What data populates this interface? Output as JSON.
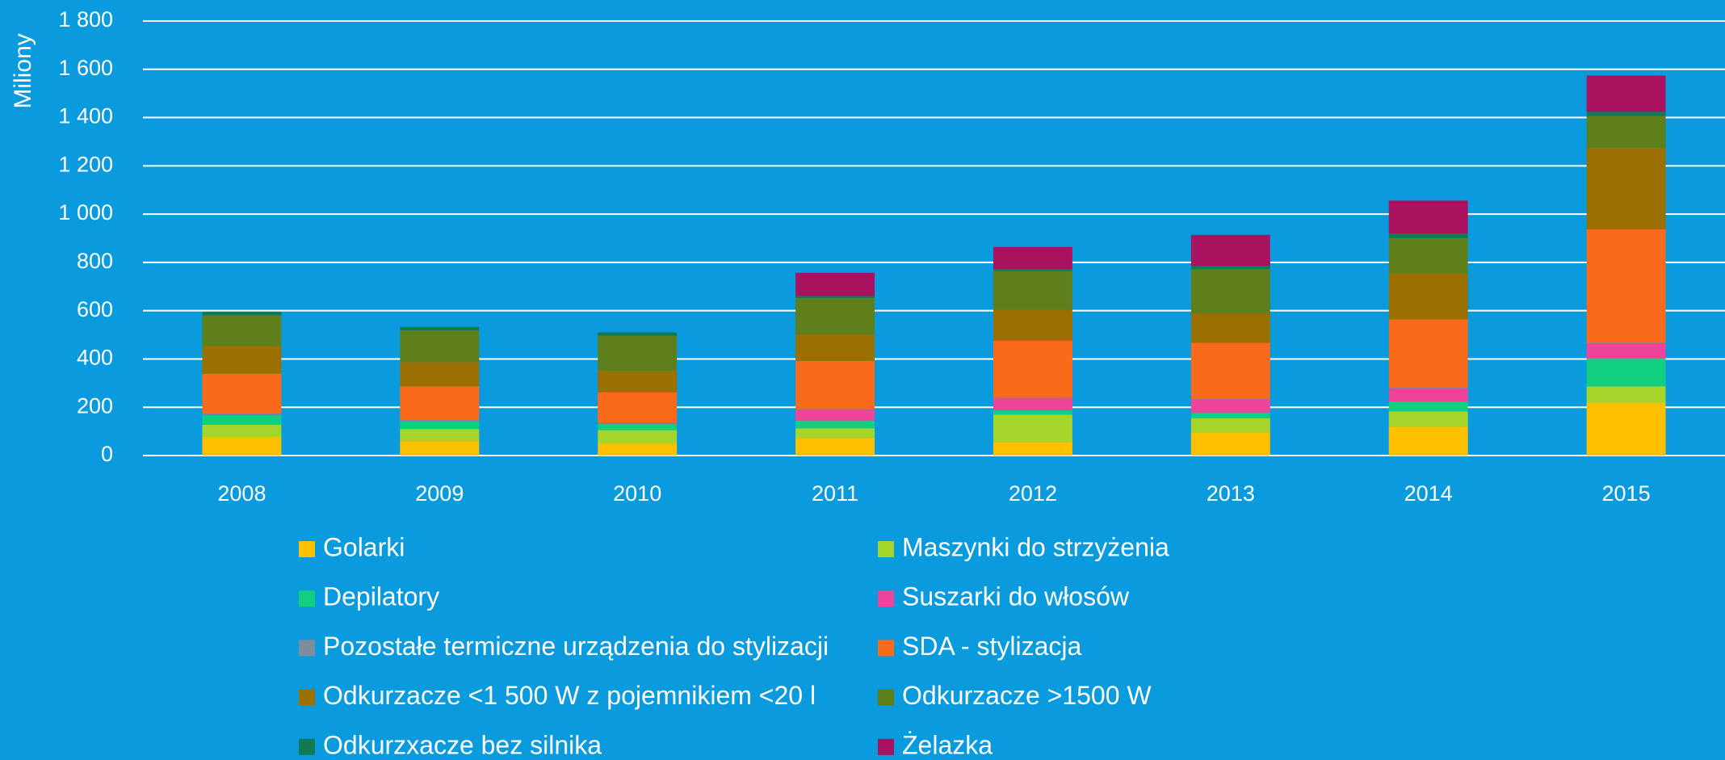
{
  "chart_data": {
    "type": "bar",
    "stacked": true,
    "y_axis_label": "Miliony",
    "categories": [
      "2008",
      "2009",
      "2010",
      "2011",
      "2012",
      "2013",
      "2014",
      "2015"
    ],
    "series": [
      {
        "name": "Golarki",
        "color": "#ffc000",
        "values": [
          77,
          60,
          50,
          73,
          55,
          96,
          119,
          219
        ]
      },
      {
        "name": "Maszynki do strzyżenia",
        "color": "#a5d42a",
        "values": [
          50,
          50,
          55,
          40,
          114,
          59,
          64,
          68
        ]
      },
      {
        "name": "Depilatory",
        "color": "#10cf80",
        "values": [
          40,
          32,
          27,
          32,
          18,
          23,
          41,
          114
        ]
      },
      {
        "name": "Suszarki do włosów",
        "color": "#f0449a",
        "values": [
          5,
          3,
          3,
          45,
          50,
          55,
          55,
          64
        ]
      },
      {
        "name": "Pozostałe termiczne urządzenia do stylizacji",
        "color": "#7f8c99",
        "values": [
          2,
          2,
          2,
          2,
          2,
          2,
          2,
          2
        ]
      },
      {
        "name": "SDA - stylizacja",
        "color": "#f96a1b",
        "values": [
          165,
          140,
          125,
          200,
          237,
          232,
          283,
          470
        ]
      },
      {
        "name": "Odkurzacze <1 500 W z pojemnikiem <20 l",
        "color": "#9b6f00",
        "values": [
          114,
          100,
          90,
          110,
          128,
          123,
          191,
          337
        ]
      },
      {
        "name": "Odkurzacze >1500 W",
        "color": "#5e7f1c",
        "values": [
          128,
          132,
          145,
          150,
          160,
          182,
          146,
          132
        ]
      },
      {
        "name": "Odkurzxacze bez silnika",
        "color": "#107a50",
        "values": [
          14,
          14,
          13,
          9,
          9,
          14,
          18,
          18
        ]
      },
      {
        "name": "Żelazka",
        "color": "#a8125e",
        "values": [
          0,
          0,
          0,
          96,
          91,
          128,
          137,
          150
        ]
      }
    ],
    "ylim": [
      0,
      1800
    ],
    "yticks": [
      0,
      200,
      400,
      600,
      800,
      {
        "value": 1000,
        "label": "1 000"
      },
      {
        "value": 1200,
        "label": "1 200"
      },
      {
        "value": 1400,
        "label": "1 400"
      },
      {
        "value": 1600,
        "label": "1 600"
      },
      {
        "value": 1800,
        "label": "1 800"
      }
    ],
    "grid": true,
    "legend": "bottom",
    "background": "#0a9ade"
  }
}
